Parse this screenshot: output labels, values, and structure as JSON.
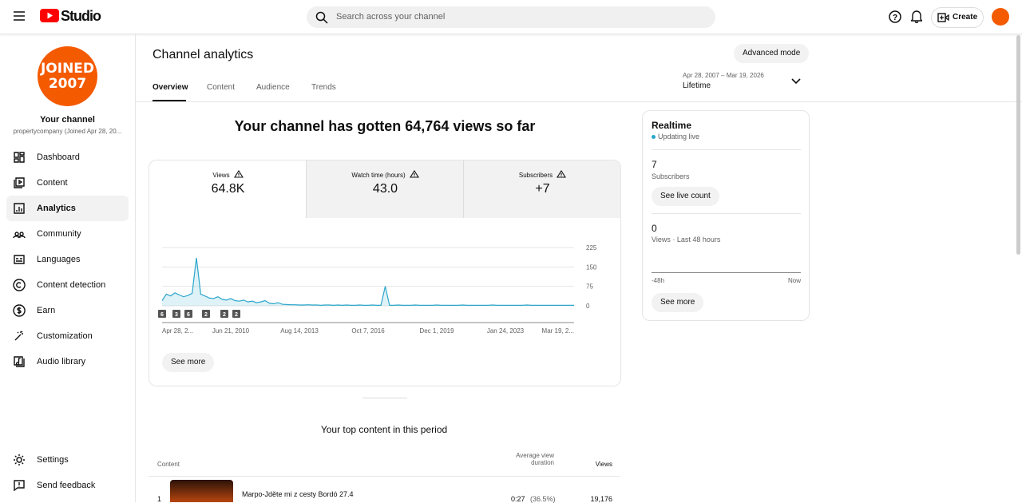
{
  "header": {
    "logo": "Studio",
    "search_placeholder": "Search across your channel",
    "create": "Create"
  },
  "avatar": {
    "line1": "JOINED",
    "line2": "2007"
  },
  "sidebar": {
    "channel_title": "Your channel",
    "channel_sub": "propertycompany (Joined Apr 28, 20...",
    "nav": [
      "Dashboard",
      "Content",
      "Analytics",
      "Community",
      "Languages",
      "Content detection",
      "Earn",
      "Customization",
      "Audio library"
    ],
    "bottom": [
      "Settings",
      "Send feedback"
    ]
  },
  "page": {
    "title": "Channel analytics",
    "advanced": "Advanced mode",
    "tabs": [
      "Overview",
      "Content",
      "Audience",
      "Trends"
    ],
    "date_range": "Apr 28, 2007 – Mar 19, 2026",
    "period": "Lifetime"
  },
  "summary": {
    "headline": "Your channel has gotten 64,764 views so far",
    "metrics": [
      {
        "label": "Views",
        "value": "64.8K"
      },
      {
        "label": "Watch time (hours)",
        "value": "43.0"
      },
      {
        "label": "Subscribers",
        "value": "+7"
      }
    ],
    "annotations": [
      "6",
      "3",
      "6",
      "2",
      "2",
      "2"
    ],
    "see_more": "See more"
  },
  "chart_data": {
    "type": "line",
    "color": "#2ba6cb",
    "categories": [
      "Apr 28, 2...",
      null,
      null,
      null,
      null,
      null,
      null,
      null,
      null,
      null,
      null,
      null,
      null,
      null,
      null,
      null,
      "Jun 21, 2010",
      null,
      null,
      null,
      null,
      null,
      null,
      null,
      null,
      null,
      null,
      null,
      null,
      null,
      null,
      null,
      "Aug 14, 2013",
      null,
      null,
      null,
      null,
      null,
      null,
      null,
      null,
      null,
      null,
      null,
      null,
      null,
      null,
      null,
      "Oct 7, 2016",
      null,
      null,
      null,
      null,
      null,
      null,
      null,
      null,
      null,
      null,
      null,
      null,
      null,
      null,
      null,
      "Dec 1, 2019",
      null,
      null,
      null,
      null,
      null,
      null,
      null,
      null,
      null,
      null,
      null,
      null,
      null,
      null,
      null,
      "Jan 24, 2023",
      null,
      null,
      null,
      null,
      null,
      null,
      null,
      null,
      null,
      null,
      null,
      null,
      null,
      null,
      null,
      "Mar 19, 2..."
    ],
    "values": [
      20,
      45,
      38,
      50,
      42,
      35,
      40,
      48,
      185,
      45,
      38,
      30,
      28,
      35,
      25,
      22,
      28,
      20,
      18,
      22,
      15,
      18,
      12,
      15,
      20,
      10,
      8,
      12,
      6,
      5,
      4,
      4,
      3,
      3,
      4,
      3,
      3,
      2,
      3,
      3,
      2,
      3,
      2,
      3,
      2,
      2,
      3,
      2,
      2,
      3,
      2,
      2,
      75,
      2,
      2,
      3,
      2,
      2,
      2,
      3,
      2,
      2,
      2,
      2,
      3,
      2,
      2,
      2,
      2,
      2,
      3,
      2,
      2,
      2,
      2,
      2,
      2,
      3,
      2,
      2,
      2,
      2,
      2,
      2,
      2,
      3,
      2,
      2,
      2,
      2,
      2,
      2,
      2,
      2,
      2,
      2,
      2
    ],
    "ylim": [
      0,
      225
    ],
    "yticks": [
      0,
      75,
      150,
      225
    ],
    "grid": true
  },
  "realtime": {
    "title": "Realtime",
    "status": "Updating live",
    "subs_value": "7",
    "subs_label": "Subscribers",
    "live_count": "See live count",
    "views_value": "0",
    "views_label": "Views · Last 48 hours",
    "axis_start": "-48h",
    "axis_end": "Now",
    "see_more": "See more"
  },
  "top_content": {
    "title": "Your top content in this period",
    "col_content": "Content",
    "col_avd": "Average view duration",
    "col_views": "Views",
    "rows": [
      {
        "rank": "1",
        "title": "Marpo-Jděte mi z cesty Bordó 27.4",
        "avd": "0:27",
        "avd_pct": "(36.5%)",
        "views": "19,176"
      }
    ]
  }
}
